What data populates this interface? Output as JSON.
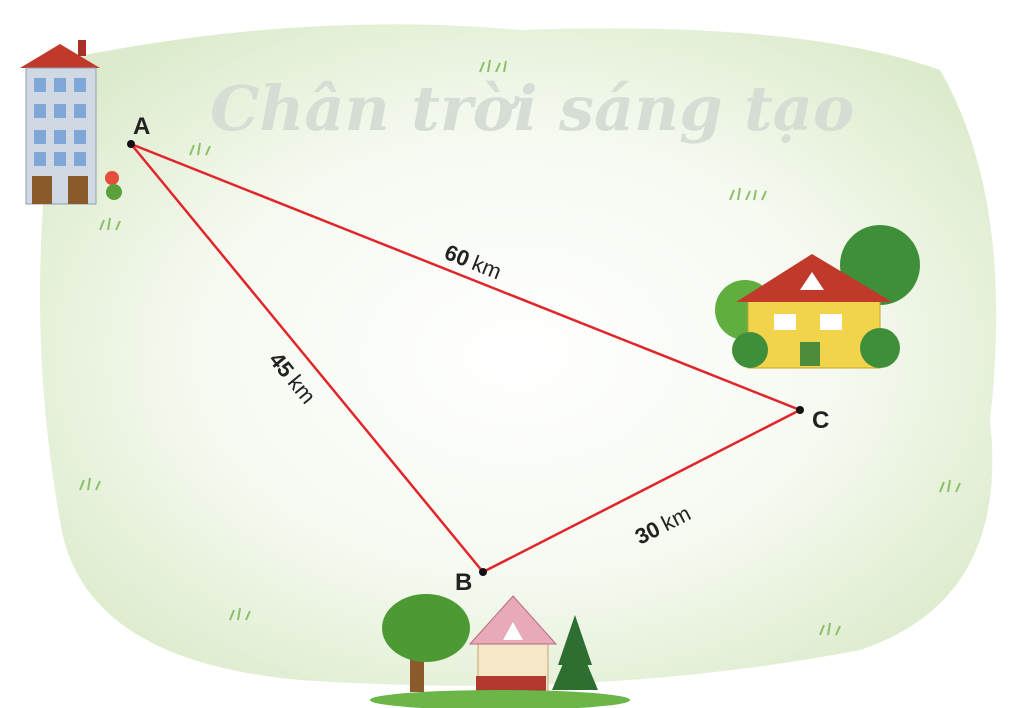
{
  "watermark": "Chân trời sáng tạo",
  "points": [
    {
      "label": "A"
    },
    {
      "label": "B"
    },
    {
      "label": "C"
    }
  ],
  "edges": [
    {
      "length": 60,
      "unit": "km"
    },
    {
      "length": 45,
      "unit": "km"
    },
    {
      "length": 30,
      "unit": "km"
    }
  ]
}
